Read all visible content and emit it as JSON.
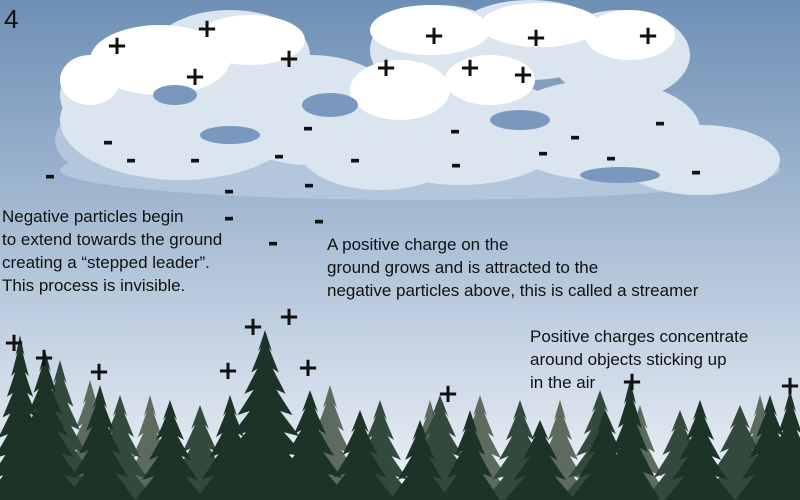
{
  "step_number": "4",
  "captions": {
    "negative": {
      "lines": [
        "Negative particles begin",
        "to extend towards the ground",
        "creating a “stepped leader”.",
        "This process is invisible."
      ]
    },
    "streamer": {
      "lines": [
        "A positive charge on the",
        "ground grows and is attracted to the",
        "negative particles above, this is called a streamer"
      ]
    },
    "objects": {
      "lines": [
        "Positive charges concentrate",
        "around objects sticking up",
        "in the air"
      ]
    }
  },
  "symbols": {
    "positive": "+",
    "negative": "-"
  },
  "colors": {
    "sky_top": "#6e8fb5",
    "sky_bottom": "#eef3f8",
    "cloud_light": "#ffffff",
    "cloud_mid": "#dbe5f0",
    "cloud_shadow": "#b3c6dc",
    "cloud_dark": "#7a98be",
    "tree_dark": "#1e3328",
    "tree_mid": "#34493d",
    "tree_far": "#5c6b5e"
  }
}
